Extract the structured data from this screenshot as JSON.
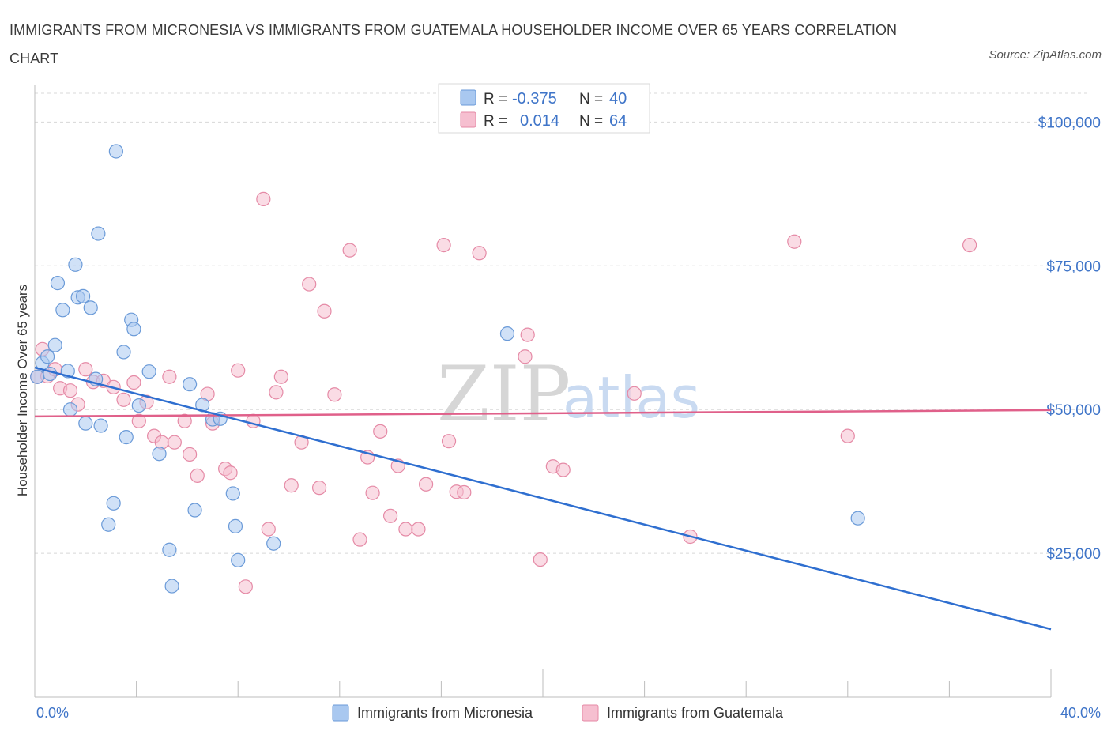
{
  "header": {
    "title": "IMMIGRANTS FROM MICRONESIA VS IMMIGRANTS FROM GUATEMALA HOUSEHOLDER INCOME OVER 65 YEARS CORRELATION CHART",
    "source": "Source: ZipAtlas.com"
  },
  "legend": {
    "r_label": "R =",
    "n_label": "N =",
    "micronesia": {
      "r": "-0.375",
      "n": "40"
    },
    "guatemala": {
      "r": "0.014",
      "n": "64"
    }
  },
  "bottom_legend": {
    "micronesia": "Immigrants from Micronesia",
    "guatemala": "Immigrants from Guatemala"
  },
  "watermark": {
    "zip": "ZIP",
    "atlas": "atlas"
  },
  "colors": {
    "micronesia_fill": "#a9c8f0",
    "micronesia_stroke": "#6a9ad8",
    "micronesia_line": "#2f6fd0",
    "guatemala_fill": "#f6bfd0",
    "guatemala_stroke": "#e58aa6",
    "guatemala_line": "#e0608a",
    "grid": "#d8d8d8",
    "tick_text": "#3e74c8"
  },
  "chart_data": {
    "type": "scatter",
    "title": "IMMIGRANTS FROM MICRONESIA VS IMMIGRANTS FROM GUATEMALA HOUSEHOLDER INCOME OVER 65 YEARS CORRELATION CHART",
    "xlabel": "",
    "ylabel": "Householder Income Over 65 years",
    "xlim": [
      0,
      40
    ],
    "ylim": [
      0,
      105000
    ],
    "x_tick_labels": [
      "0.0%",
      "40.0%"
    ],
    "y_ticks": [
      25000,
      50000,
      75000,
      100000
    ],
    "y_tick_labels": [
      "$25,000",
      "$50,000",
      "$75,000",
      "$100,000"
    ],
    "grid": true,
    "legend_position": "top-center",
    "series": [
      {
        "name": "Immigrants from Micronesia",
        "points": [
          [
            0.1,
            55700
          ],
          [
            0.3,
            58100
          ],
          [
            0.5,
            59200
          ],
          [
            0.6,
            56200
          ],
          [
            0.8,
            61200
          ],
          [
            0.9,
            72000
          ],
          [
            1.1,
            67300
          ],
          [
            1.3,
            56700
          ],
          [
            1.4,
            50000
          ],
          [
            1.6,
            75200
          ],
          [
            1.7,
            69500
          ],
          [
            1.9,
            69700
          ],
          [
            2.0,
            47600
          ],
          [
            2.2,
            67700
          ],
          [
            2.4,
            55300
          ],
          [
            2.5,
            80600
          ],
          [
            2.6,
            47200
          ],
          [
            2.9,
            30000
          ],
          [
            3.1,
            33700
          ],
          [
            3.2,
            94900
          ],
          [
            3.5,
            60000
          ],
          [
            3.6,
            45200
          ],
          [
            3.8,
            65600
          ],
          [
            3.9,
            64000
          ],
          [
            4.1,
            50700
          ],
          [
            4.5,
            56600
          ],
          [
            4.9,
            42300
          ],
          [
            5.3,
            25600
          ],
          [
            5.4,
            19300
          ],
          [
            6.1,
            54400
          ],
          [
            6.3,
            32500
          ],
          [
            6.6,
            50800
          ],
          [
            7.0,
            48300
          ],
          [
            7.3,
            48400
          ],
          [
            7.8,
            35400
          ],
          [
            7.9,
            29700
          ],
          [
            8.0,
            23800
          ],
          [
            9.4,
            26700
          ],
          [
            18.6,
            63200
          ],
          [
            32.4,
            31100
          ]
        ]
      },
      {
        "name": "Immigrants from Guatemala",
        "points": [
          [
            0.1,
            55700
          ],
          [
            0.3,
            60500
          ],
          [
            0.5,
            55800
          ],
          [
            0.8,
            57000
          ],
          [
            1.0,
            53700
          ],
          [
            1.4,
            53300
          ],
          [
            1.7,
            50900
          ],
          [
            2.0,
            57000
          ],
          [
            2.3,
            54800
          ],
          [
            2.7,
            55000
          ],
          [
            3.1,
            53900
          ],
          [
            3.5,
            51700
          ],
          [
            3.9,
            54700
          ],
          [
            4.1,
            48000
          ],
          [
            4.4,
            51300
          ],
          [
            4.7,
            45400
          ],
          [
            5.0,
            44300
          ],
          [
            5.3,
            55700
          ],
          [
            5.5,
            44300
          ],
          [
            5.9,
            48000
          ],
          [
            6.1,
            42200
          ],
          [
            6.4,
            38500
          ],
          [
            6.8,
            52700
          ],
          [
            7.0,
            47600
          ],
          [
            7.5,
            39700
          ],
          [
            7.7,
            39000
          ],
          [
            8.0,
            56800
          ],
          [
            8.3,
            19200
          ],
          [
            8.6,
            48000
          ],
          [
            9.0,
            86600
          ],
          [
            9.2,
            29200
          ],
          [
            9.5,
            53000
          ],
          [
            9.7,
            55700
          ],
          [
            10.1,
            36800
          ],
          [
            10.5,
            44300
          ],
          [
            10.8,
            71800
          ],
          [
            11.2,
            36400
          ],
          [
            11.4,
            67100
          ],
          [
            11.8,
            52600
          ],
          [
            12.4,
            77700
          ],
          [
            12.8,
            27400
          ],
          [
            13.1,
            41700
          ],
          [
            13.3,
            35500
          ],
          [
            13.6,
            46200
          ],
          [
            14.0,
            31500
          ],
          [
            14.3,
            40200
          ],
          [
            14.6,
            29200
          ],
          [
            15.1,
            29200
          ],
          [
            15.4,
            37000
          ],
          [
            16.1,
            78600
          ],
          [
            16.3,
            44500
          ],
          [
            16.6,
            35700
          ],
          [
            16.9,
            35600
          ],
          [
            17.5,
            77200
          ],
          [
            19.3,
            59200
          ],
          [
            19.4,
            63000
          ],
          [
            19.9,
            23900
          ],
          [
            20.4,
            40100
          ],
          [
            20.8,
            39500
          ],
          [
            23.6,
            52800
          ],
          [
            25.8,
            27900
          ],
          [
            29.9,
            79200
          ],
          [
            32.0,
            45400
          ],
          [
            36.8,
            78600
          ]
        ]
      }
    ],
    "trend_lines": [
      {
        "name": "Immigrants from Micronesia",
        "from": [
          0,
          57300
        ],
        "to": [
          40,
          11800
        ]
      },
      {
        "name": "Immigrants from Guatemala",
        "from": [
          0,
          48800
        ],
        "to": [
          40,
          49900
        ]
      }
    ]
  }
}
